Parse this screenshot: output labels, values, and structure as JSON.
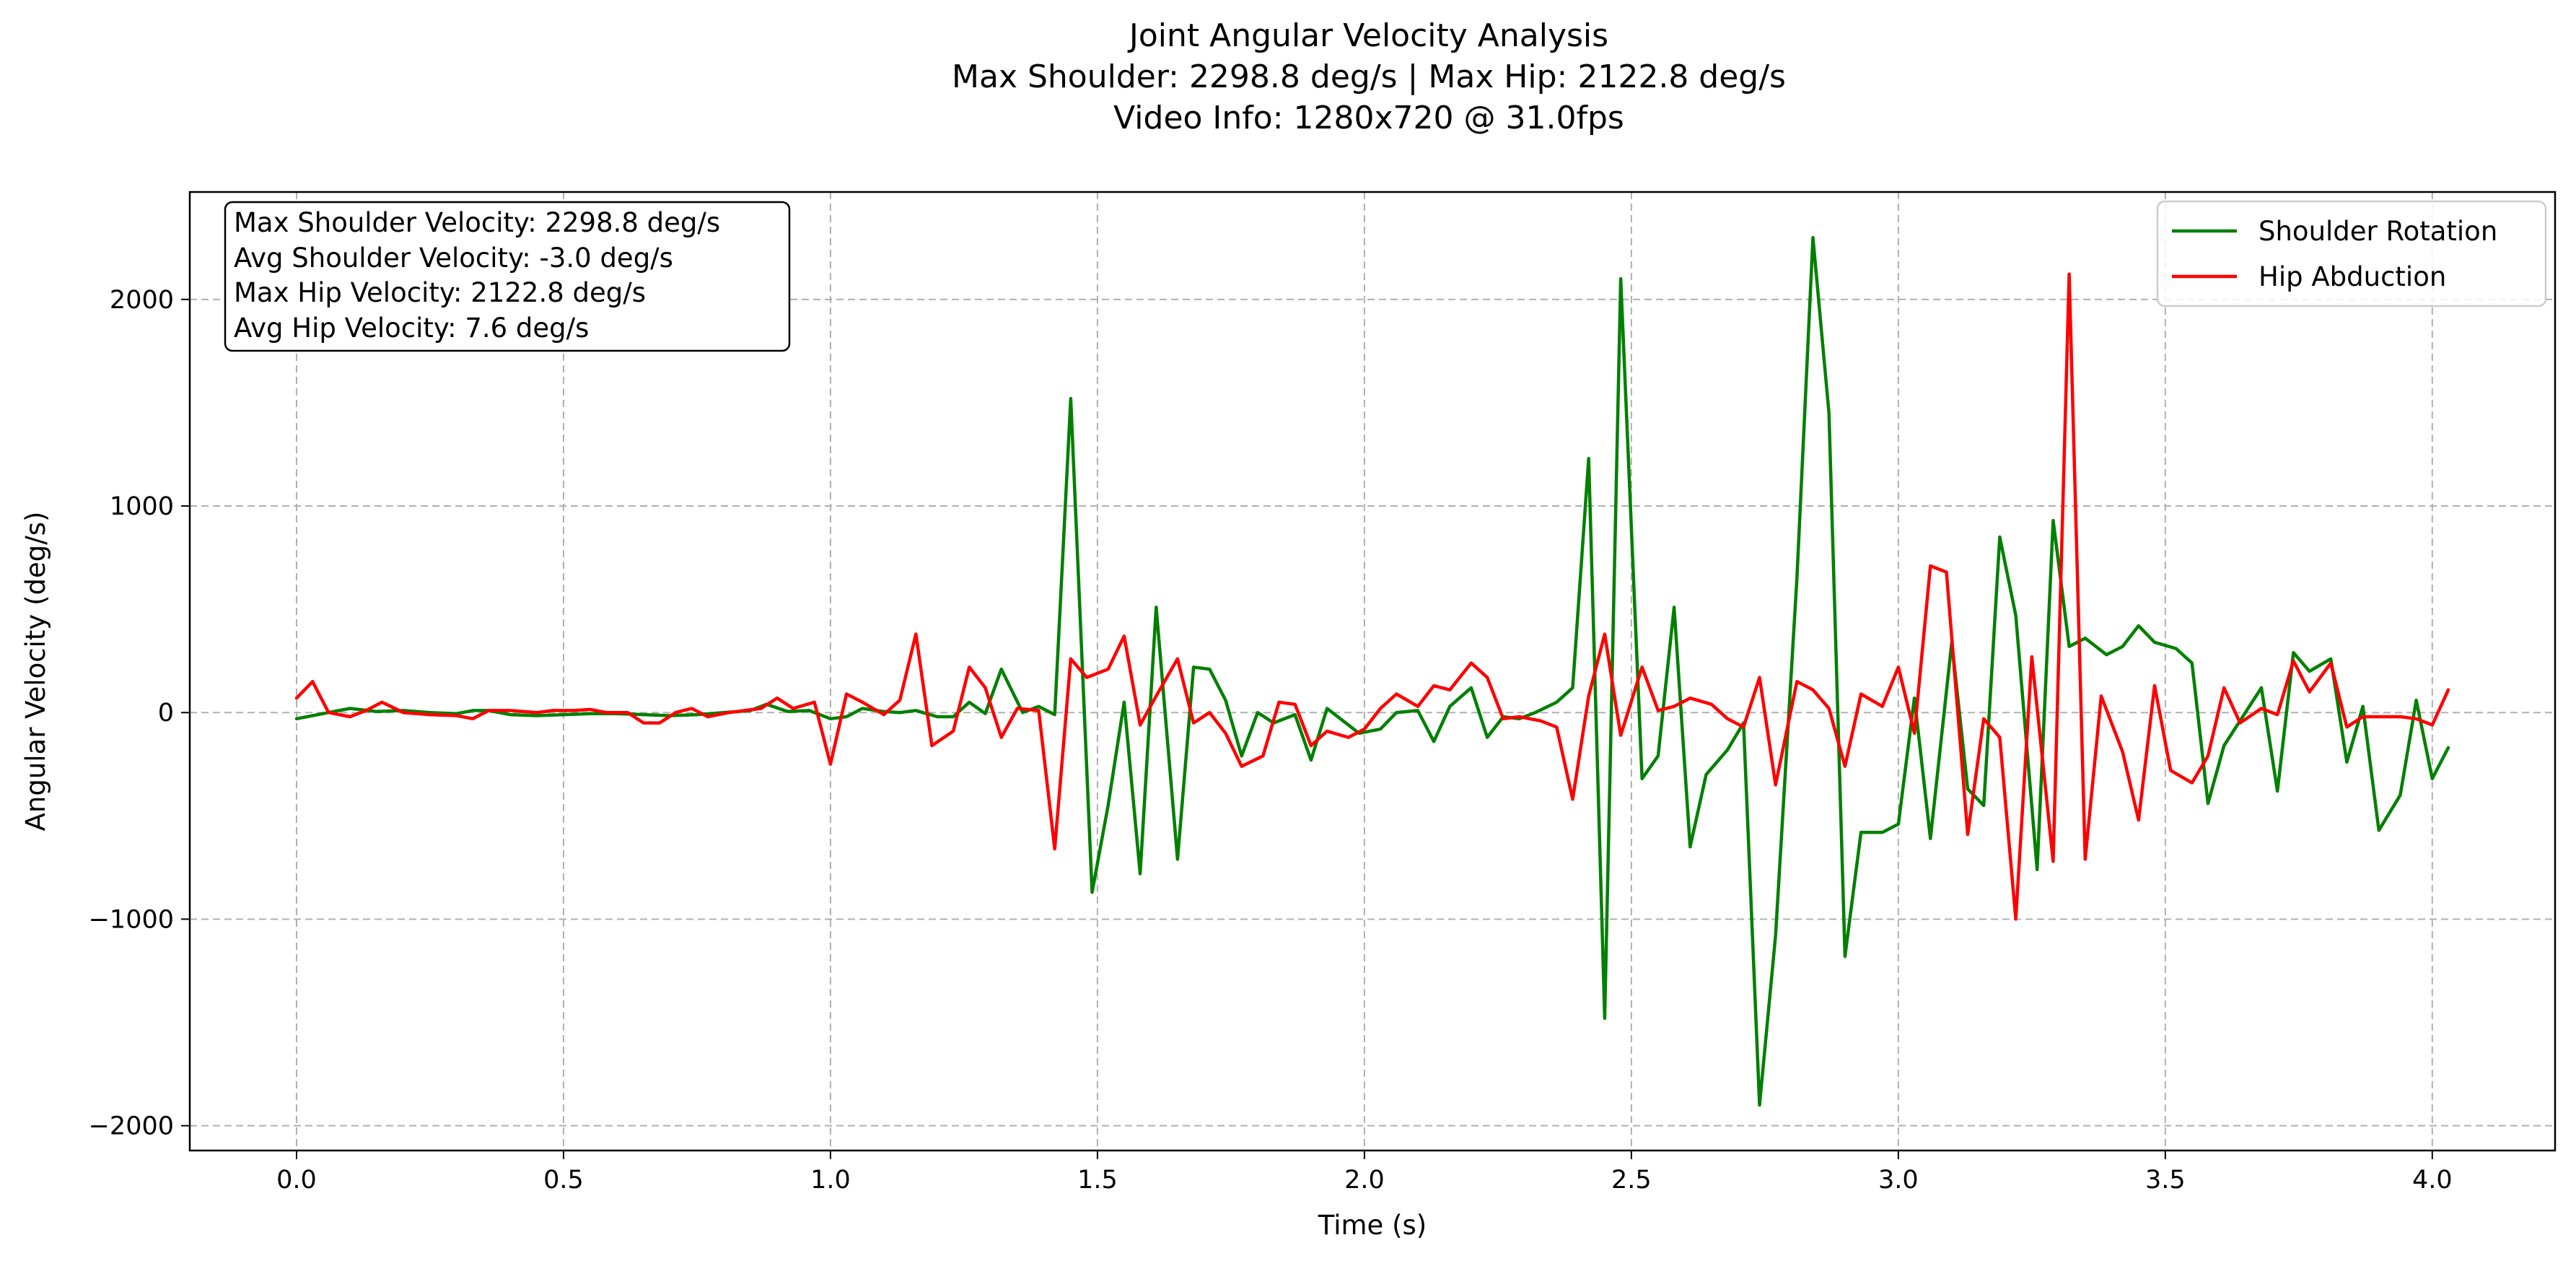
{
  "chart_data": {
    "type": "line",
    "title": "Joint Angular Velocity Analysis",
    "subtitle_lines": [
      "Max Shoulder: 2298.8 deg/s | Max Hip: 2122.8 deg/s",
      "Video Info: 1280x720 @ 31.0fps"
    ],
    "xlabel": "Time (s)",
    "ylabel": "Angular Velocity (deg/s)",
    "xlim": [
      -0.2,
      4.23
    ],
    "ylim": [
      -2120,
      2520
    ],
    "xticks": [
      0.0,
      0.5,
      1.0,
      1.5,
      2.0,
      2.5,
      3.0,
      3.5,
      4.0
    ],
    "xtick_labels": [
      "0.0",
      "0.5",
      "1.0",
      "1.5",
      "2.0",
      "2.5",
      "3.0",
      "3.5",
      "4.0"
    ],
    "yticks": [
      -2000,
      -1000,
      0,
      1000,
      2000
    ],
    "ytick_labels": [
      "−2000",
      "−1000",
      "0",
      "1000",
      "2000"
    ],
    "grid": true,
    "legend_position": "upper right",
    "stats_box_position": "upper left",
    "stats_lines": [
      "Max Shoulder Velocity: 2298.8 deg/s",
      "Avg Shoulder Velocity: -3.0 deg/s",
      "Max Hip Velocity: 2122.8 deg/s",
      "Avg Hip Velocity: 7.6 deg/s"
    ],
    "series": [
      {
        "name": "Shoulder Rotation",
        "color": "#008000",
        "points": [
          [
            0.0,
            -30
          ],
          [
            0.06,
            0
          ],
          [
            0.1,
            20
          ],
          [
            0.15,
            5
          ],
          [
            0.2,
            10
          ],
          [
            0.25,
            0
          ],
          [
            0.3,
            -5
          ],
          [
            0.33,
            10
          ],
          [
            0.36,
            10
          ],
          [
            0.4,
            -10
          ],
          [
            0.45,
            -15
          ],
          [
            0.5,
            -10
          ],
          [
            0.55,
            -5
          ],
          [
            0.6,
            -5
          ],
          [
            0.65,
            -10
          ],
          [
            0.7,
            -15
          ],
          [
            0.75,
            -10
          ],
          [
            0.8,
            0
          ],
          [
            0.85,
            10
          ],
          [
            0.88,
            40
          ],
          [
            0.92,
            5
          ],
          [
            0.96,
            10
          ],
          [
            1.0,
            -30
          ],
          [
            1.03,
            -20
          ],
          [
            1.06,
            20
          ],
          [
            1.1,
            5
          ],
          [
            1.13,
            0
          ],
          [
            1.16,
            10
          ],
          [
            1.2,
            -20
          ],
          [
            1.23,
            -20
          ],
          [
            1.26,
            50
          ],
          [
            1.29,
            -5
          ],
          [
            1.32,
            210
          ],
          [
            1.36,
            0
          ],
          [
            1.39,
            30
          ],
          [
            1.42,
            -10
          ],
          [
            1.45,
            1520
          ],
          [
            1.49,
            -870
          ],
          [
            1.52,
            -450
          ],
          [
            1.55,
            50
          ],
          [
            1.58,
            -780
          ],
          [
            1.61,
            510
          ],
          [
            1.65,
            -710
          ],
          [
            1.68,
            220
          ],
          [
            1.71,
            210
          ],
          [
            1.74,
            60
          ],
          [
            1.77,
            -210
          ],
          [
            1.8,
            0
          ],
          [
            1.83,
            -50
          ],
          [
            1.87,
            -10
          ],
          [
            1.9,
            -230
          ],
          [
            1.93,
            20
          ],
          [
            1.96,
            -40
          ],
          [
            1.99,
            -100
          ],
          [
            2.03,
            -80
          ],
          [
            2.06,
            0
          ],
          [
            2.1,
            10
          ],
          [
            2.13,
            -140
          ],
          [
            2.16,
            30
          ],
          [
            2.2,
            120
          ],
          [
            2.23,
            -120
          ],
          [
            2.26,
            -20
          ],
          [
            2.29,
            -30
          ],
          [
            2.32,
            0
          ],
          [
            2.36,
            50
          ],
          [
            2.39,
            120
          ],
          [
            2.42,
            1230
          ],
          [
            2.45,
            -1480
          ],
          [
            2.48,
            2100
          ],
          [
            2.52,
            -320
          ],
          [
            2.55,
            -210
          ],
          [
            2.58,
            510
          ],
          [
            2.61,
            -650
          ],
          [
            2.64,
            -300
          ],
          [
            2.68,
            -180
          ],
          [
            2.71,
            -50
          ],
          [
            2.74,
            -1900
          ],
          [
            2.77,
            -1080
          ],
          [
            2.81,
            650
          ],
          [
            2.84,
            2298.8
          ],
          [
            2.87,
            1450
          ],
          [
            2.9,
            -1180
          ],
          [
            2.93,
            -580
          ],
          [
            2.97,
            -580
          ],
          [
            3.0,
            -540
          ],
          [
            3.03,
            70
          ],
          [
            3.06,
            -610
          ],
          [
            3.1,
            340
          ],
          [
            3.13,
            -370
          ],
          [
            3.16,
            -450
          ],
          [
            3.19,
            850
          ],
          [
            3.22,
            470
          ],
          [
            3.26,
            -760
          ],
          [
            3.29,
            930
          ],
          [
            3.32,
            320
          ],
          [
            3.35,
            360
          ],
          [
            3.39,
            280
          ],
          [
            3.42,
            320
          ],
          [
            3.45,
            420
          ],
          [
            3.48,
            340
          ],
          [
            3.52,
            310
          ],
          [
            3.55,
            240
          ],
          [
            3.58,
            -440
          ],
          [
            3.61,
            -160
          ],
          [
            3.65,
            0
          ],
          [
            3.68,
            120
          ],
          [
            3.71,
            -380
          ],
          [
            3.74,
            290
          ],
          [
            3.77,
            200
          ],
          [
            3.81,
            260
          ],
          [
            3.84,
            -240
          ],
          [
            3.87,
            30
          ],
          [
            3.9,
            -570
          ],
          [
            3.94,
            -400
          ],
          [
            3.97,
            60
          ],
          [
            4.0,
            -320
          ],
          [
            4.03,
            -170
          ]
        ]
      },
      {
        "name": "Hip Abduction",
        "color": "#ff0000",
        "points": [
          [
            0.0,
            70
          ],
          [
            0.03,
            150
          ],
          [
            0.06,
            0
          ],
          [
            0.1,
            -20
          ],
          [
            0.13,
            10
          ],
          [
            0.16,
            50
          ],
          [
            0.2,
            0
          ],
          [
            0.25,
            -10
          ],
          [
            0.3,
            -15
          ],
          [
            0.33,
            -30
          ],
          [
            0.36,
            10
          ],
          [
            0.4,
            10
          ],
          [
            0.45,
            0
          ],
          [
            0.48,
            10
          ],
          [
            0.52,
            10
          ],
          [
            0.55,
            15
          ],
          [
            0.58,
            0
          ],
          [
            0.62,
            0
          ],
          [
            0.65,
            -50
          ],
          [
            0.68,
            -50
          ],
          [
            0.71,
            0
          ],
          [
            0.74,
            20
          ],
          [
            0.77,
            -20
          ],
          [
            0.81,
            0
          ],
          [
            0.87,
            20
          ],
          [
            0.9,
            70
          ],
          [
            0.93,
            20
          ],
          [
            0.97,
            50
          ],
          [
            1.0,
            -250
          ],
          [
            1.03,
            90
          ],
          [
            1.06,
            50
          ],
          [
            1.1,
            -10
          ],
          [
            1.13,
            60
          ],
          [
            1.16,
            380
          ],
          [
            1.19,
            -160
          ],
          [
            1.23,
            -90
          ],
          [
            1.26,
            220
          ],
          [
            1.29,
            120
          ],
          [
            1.32,
            -120
          ],
          [
            1.35,
            20
          ],
          [
            1.39,
            10
          ],
          [
            1.42,
            -660
          ],
          [
            1.45,
            260
          ],
          [
            1.48,
            170
          ],
          [
            1.52,
            210
          ],
          [
            1.55,
            370
          ],
          [
            1.58,
            -60
          ],
          [
            1.61,
            80
          ],
          [
            1.65,
            260
          ],
          [
            1.68,
            -50
          ],
          [
            1.71,
            0
          ],
          [
            1.74,
            -100
          ],
          [
            1.77,
            -260
          ],
          [
            1.81,
            -210
          ],
          [
            1.84,
            50
          ],
          [
            1.87,
            40
          ],
          [
            1.9,
            -160
          ],
          [
            1.93,
            -90
          ],
          [
            1.97,
            -120
          ],
          [
            2.0,
            -80
          ],
          [
            2.03,
            20
          ],
          [
            2.06,
            90
          ],
          [
            2.1,
            30
          ],
          [
            2.13,
            130
          ],
          [
            2.16,
            110
          ],
          [
            2.2,
            240
          ],
          [
            2.23,
            170
          ],
          [
            2.26,
            -30
          ],
          [
            2.29,
            -20
          ],
          [
            2.33,
            -40
          ],
          [
            2.36,
            -70
          ],
          [
            2.39,
            -420
          ],
          [
            2.42,
            80
          ],
          [
            2.45,
            380
          ],
          [
            2.48,
            -110
          ],
          [
            2.52,
            220
          ],
          [
            2.55,
            10
          ],
          [
            2.58,
            30
          ],
          [
            2.61,
            70
          ],
          [
            2.65,
            40
          ],
          [
            2.68,
            -30
          ],
          [
            2.71,
            -70
          ],
          [
            2.74,
            170
          ],
          [
            2.77,
            -350
          ],
          [
            2.81,
            150
          ],
          [
            2.84,
            110
          ],
          [
            2.87,
            20
          ],
          [
            2.9,
            -260
          ],
          [
            2.93,
            90
          ],
          [
            2.97,
            30
          ],
          [
            3.0,
            220
          ],
          [
            3.03,
            -100
          ],
          [
            3.06,
            710
          ],
          [
            3.09,
            680
          ],
          [
            3.13,
            -590
          ],
          [
            3.16,
            -30
          ],
          [
            3.19,
            -120
          ],
          [
            3.22,
            -1000
          ],
          [
            3.25,
            270
          ],
          [
            3.29,
            -720
          ],
          [
            3.32,
            2122.8
          ],
          [
            3.35,
            -710
          ],
          [
            3.38,
            80
          ],
          [
            3.42,
            -190
          ],
          [
            3.45,
            -520
          ],
          [
            3.48,
            130
          ],
          [
            3.51,
            -280
          ],
          [
            3.55,
            -340
          ],
          [
            3.58,
            -210
          ],
          [
            3.61,
            120
          ],
          [
            3.64,
            -50
          ],
          [
            3.68,
            20
          ],
          [
            3.71,
            -10
          ],
          [
            3.74,
            250
          ],
          [
            3.77,
            100
          ],
          [
            3.81,
            240
          ],
          [
            3.84,
            -70
          ],
          [
            3.87,
            -20
          ],
          [
            3.9,
            -20
          ],
          [
            3.94,
            -20
          ],
          [
            3.97,
            -30
          ],
          [
            4.0,
            -60
          ],
          [
            4.03,
            110
          ]
        ]
      }
    ]
  }
}
